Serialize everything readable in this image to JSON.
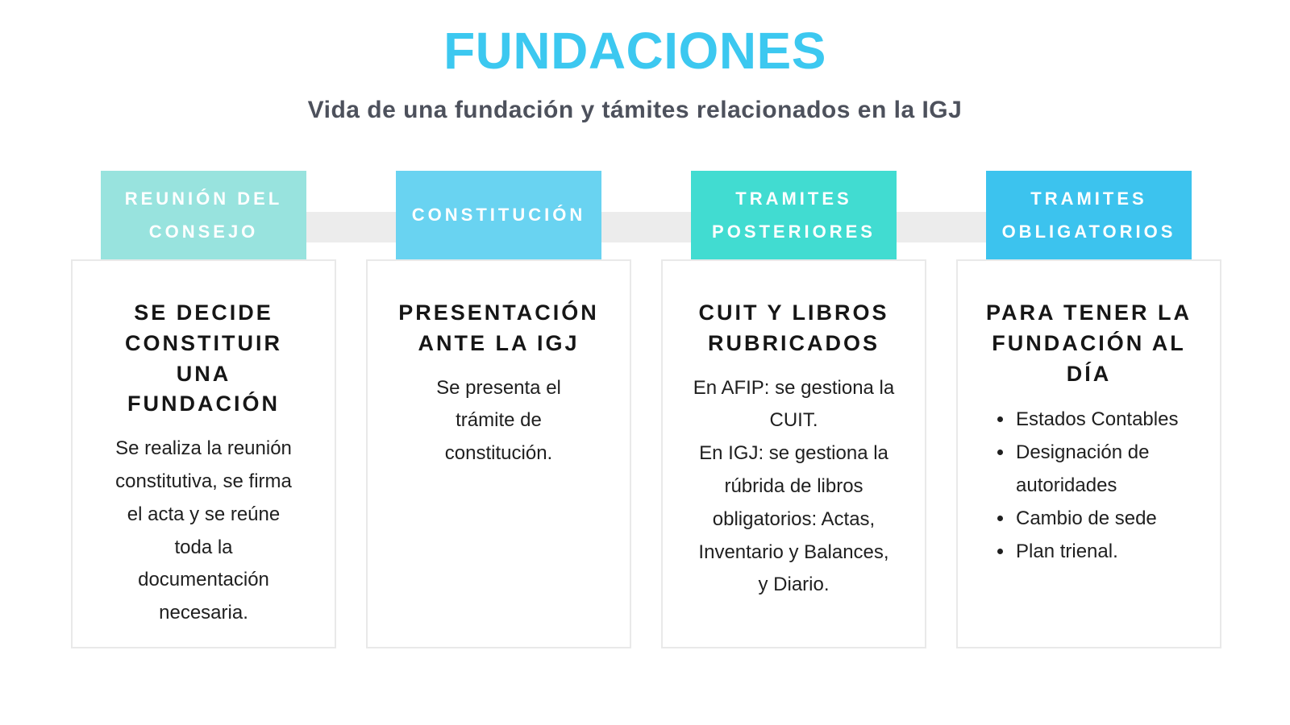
{
  "page": {
    "title": "FUNDACIONES",
    "subtitle": "Vida de una fundación y támites relacionados en la IGJ"
  },
  "colors": {
    "title": "#3cc8f0",
    "subtitle": "#4d515c",
    "connector": "#ececec",
    "card_border": "#e9e9e9",
    "badge_text": "#ffffff"
  },
  "steps": [
    {
      "badge": "REUNIÓN DEL\nCONSEJO",
      "badge_color": "#98e3de",
      "card_title": "SE DECIDE\nCONSTITUIR\nUNA\nFUNDACIÓN",
      "card_body": "Se realiza la reunión\nconstitutiva, se firma\nel acta y se reúne\ntoda la\ndocumentación\nnecesaria.",
      "bullets": []
    },
    {
      "badge": "CONSTITUCIÓN",
      "badge_color": "#69d3f1",
      "card_title": "PRESENTACIÓN\nANTE LA IGJ",
      "card_body": "Se presenta el\ntrámite de\nconstitución.",
      "bullets": []
    },
    {
      "badge": "TRAMITES\nPOSTERIORES",
      "badge_color": "#41dcd1",
      "card_title": "CUIT Y LIBROS\nRUBRICADOS",
      "card_body": "En AFIP: se gestiona la\nCUIT.\nEn IGJ: se gestiona la\nrúbrida de libros\nobligatorios: Actas,\nInventario y Balances,\ny Diario.",
      "bullets": []
    },
    {
      "badge": "TRAMITES\nOBLIGATORIOS",
      "badge_color": "#3cc3ee",
      "card_title": "PARA TENER LA\nFUNDACIÓN AL\nDÍA",
      "card_body": "",
      "bullets": [
        "Estados Contables",
        "Designación de autoridades",
        "Cambio de sede",
        "Plan trienal."
      ]
    }
  ]
}
